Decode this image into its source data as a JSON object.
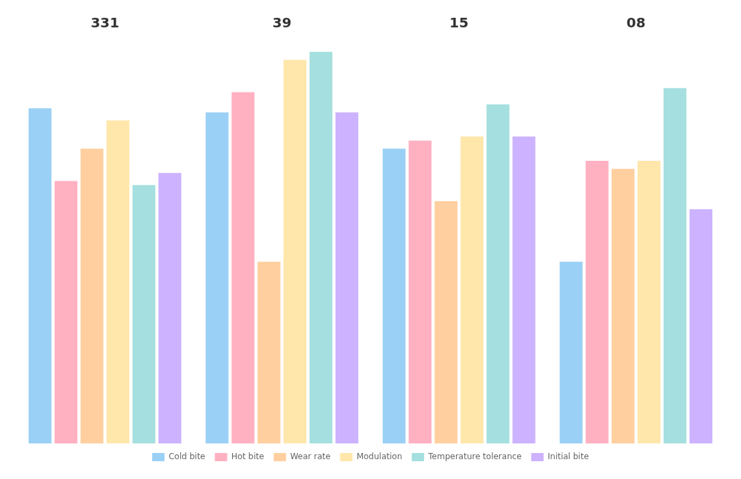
{
  "chart_data": {
    "type": "bar",
    "categories": [
      "331",
      "39",
      "15",
      "08"
    ],
    "series": [
      {
        "name": "Cold bite",
        "values": [
          83,
          82,
          73,
          45
        ]
      },
      {
        "name": "Hot bite",
        "values": [
          65,
          87,
          75,
          70
        ]
      },
      {
        "name": "Wear rate",
        "values": [
          73,
          45,
          60,
          68
        ]
      },
      {
        "name": "Modulation",
        "values": [
          80,
          95,
          76,
          70
        ]
      },
      {
        "name": "Temperature tolerance",
        "values": [
          64,
          97,
          84,
          88
        ]
      },
      {
        "name": "Initial bite",
        "values": [
          67,
          82,
          76,
          58
        ]
      }
    ],
    "ylim": [
      0,
      100
    ],
    "grid": false,
    "tick_labels": "x",
    "legend": "bottom"
  }
}
